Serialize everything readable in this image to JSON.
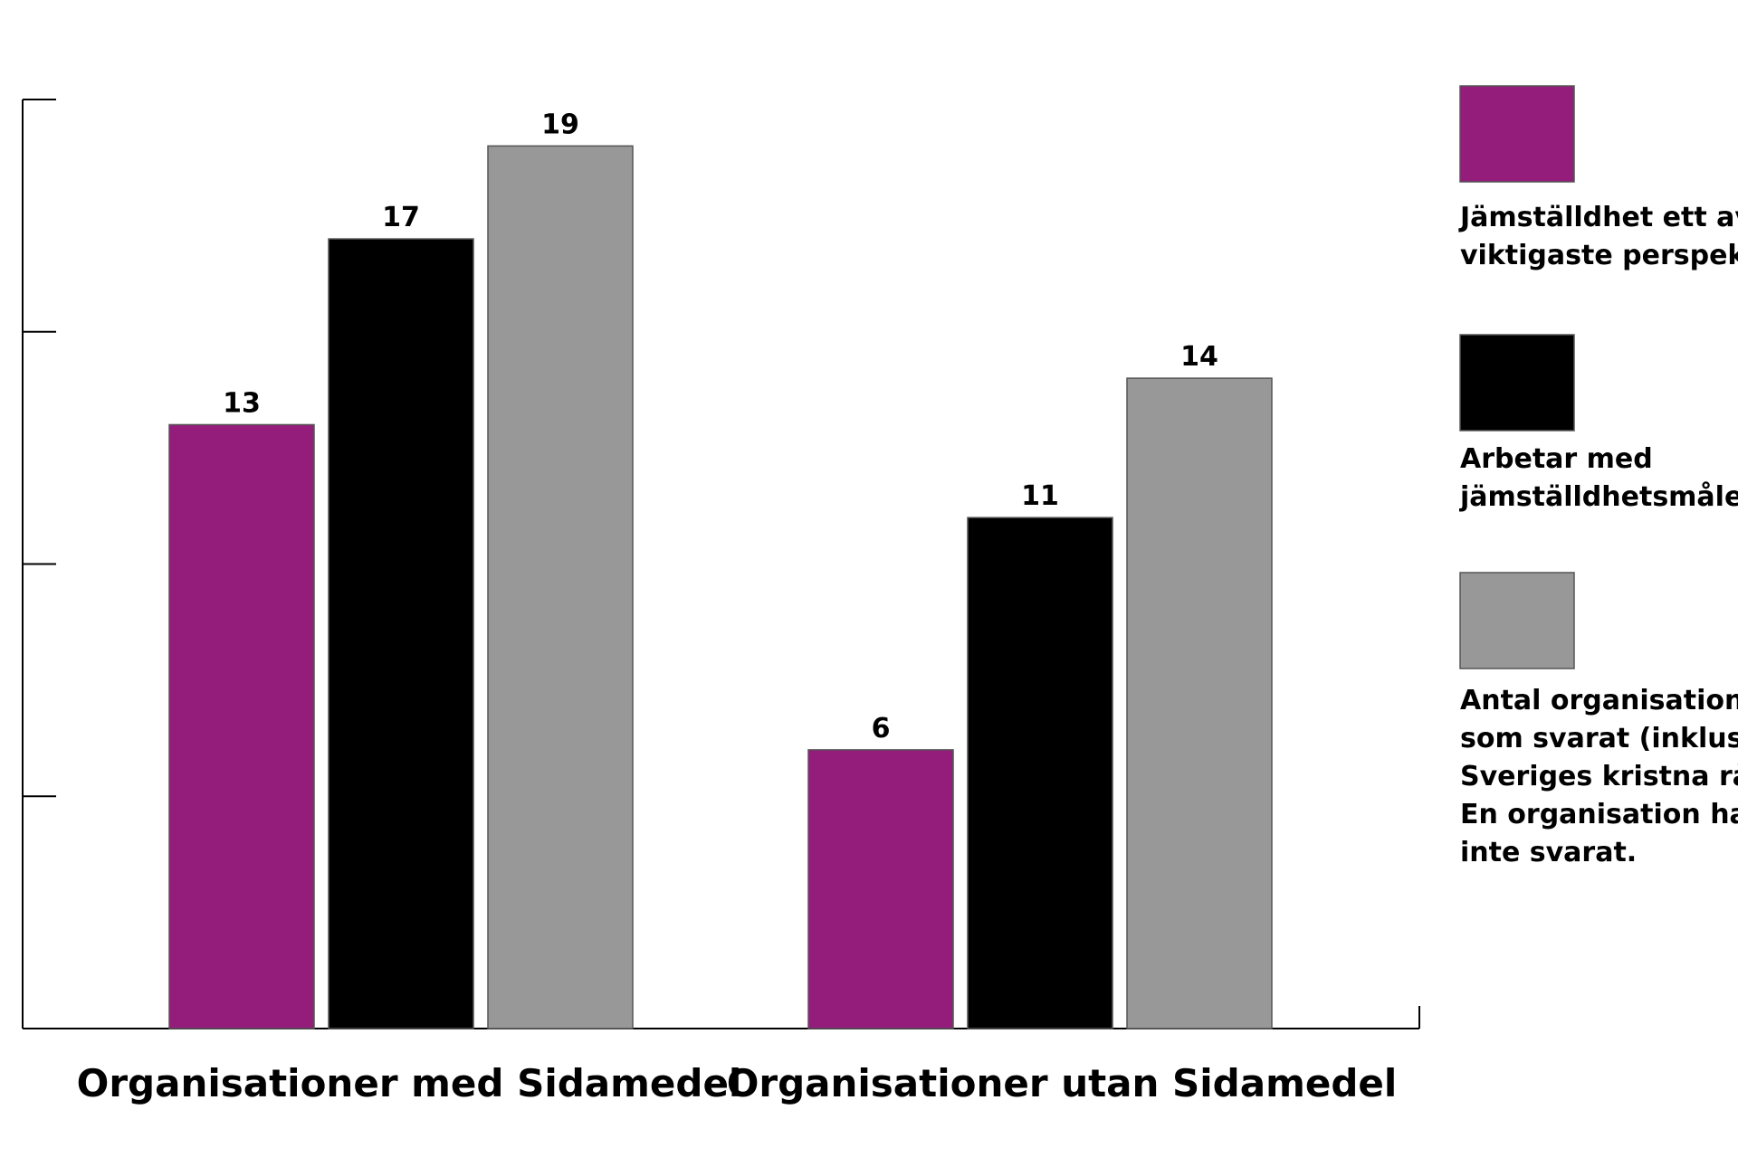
{
  "chart_data": {
    "type": "bar",
    "categories": [
      "Organisationer med Sidamedel",
      "Organisationer utan Sidamedel"
    ],
    "series": [
      {
        "name": "Jämställdhet ett av de viktigaste perspektiven",
        "color": "#941c7a",
        "values": [
          13,
          6
        ]
      },
      {
        "name": "Arbetar med jämställdhetsmålet",
        "color": "#000000",
        "values": [
          17,
          11
        ]
      },
      {
        "name": "Antal organisationer som svarat (inklusive Sveriges kristna råd). En organisation har inte svarat.",
        "color": "#999898",
        "values": [
          19,
          14
        ]
      }
    ],
    "legend": {
      "position": "right",
      "entries": [
        {
          "lines": [
            "Jämställdhet ett av de",
            "viktigaste perspektiven"
          ]
        },
        {
          "lines": [
            "Arbetar med",
            "jämställdhetsmålet"
          ]
        },
        {
          "lines": [
            "Antal organisationer",
            "som svarat (inklusive",
            "Sveriges kristna råd).",
            "En organisation har",
            "inte svarat."
          ]
        }
      ]
    },
    "ylim": [
      0,
      20
    ],
    "yticks": [
      0,
      5,
      10,
      15,
      20
    ],
    "grid": false,
    "show_tick_labels": false,
    "title": "",
    "xlabel": "",
    "ylabel": ""
  }
}
